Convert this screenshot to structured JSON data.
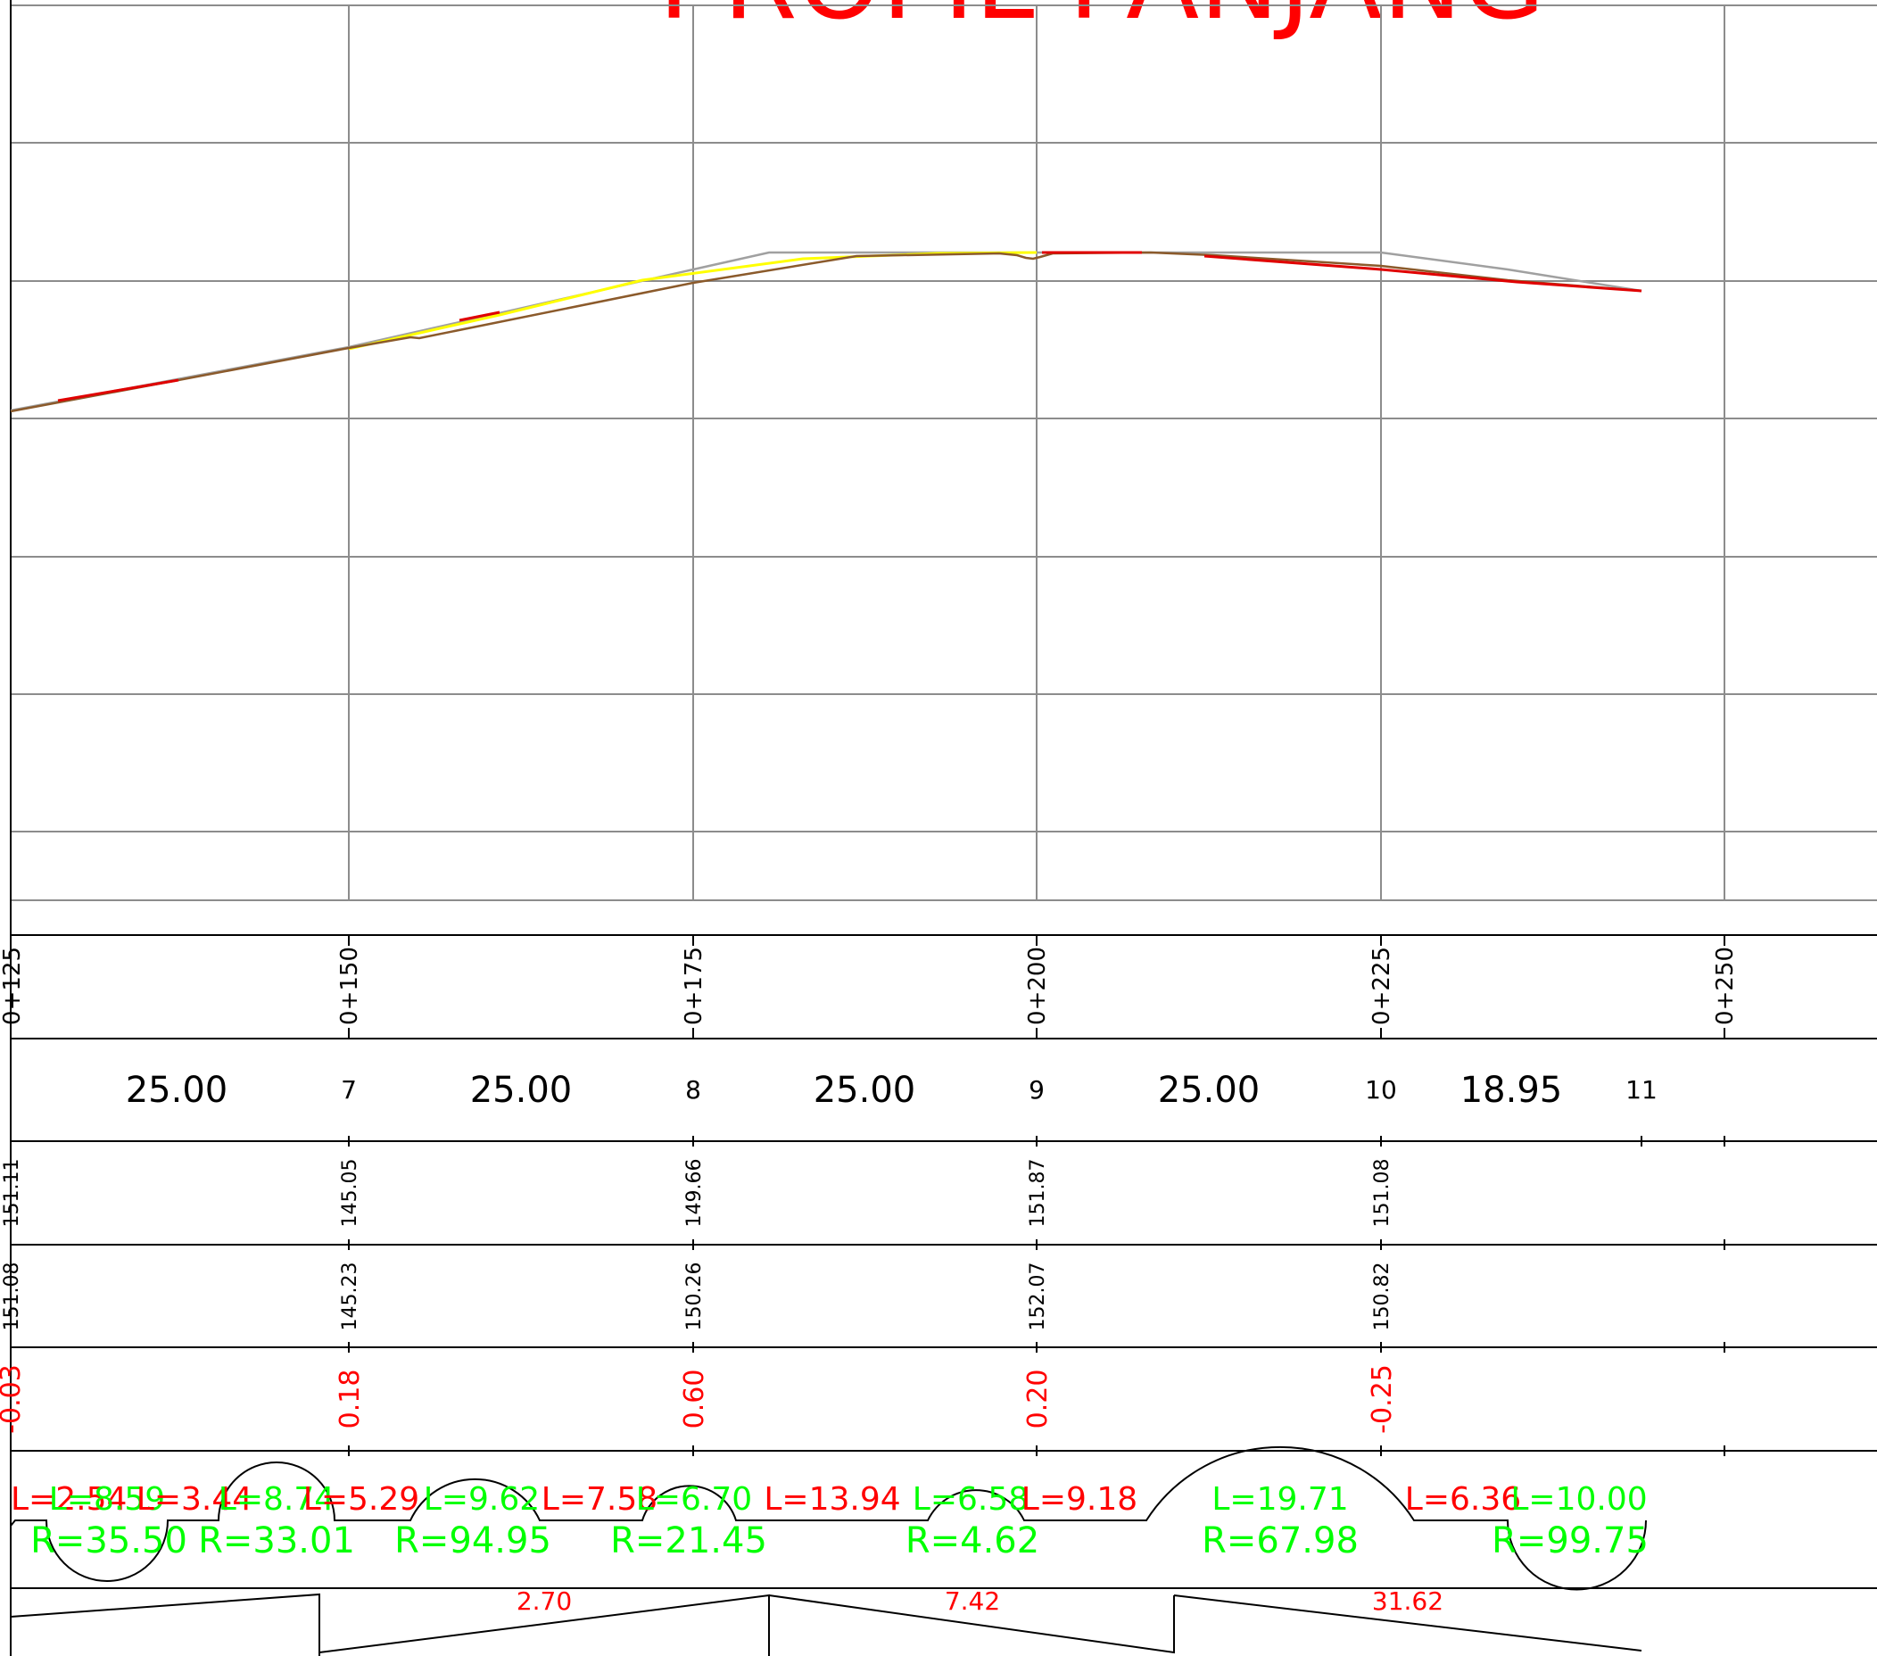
{
  "title": "PROFIL PANJANG",
  "stations": [
    "0+125",
    "0+150",
    "0+175",
    "0+200",
    "0+225",
    "0+250"
  ],
  "distances": [
    "25.00",
    "25.00",
    "25.00",
    "25.00",
    "18.95"
  ],
  "point_numbers": [
    "7",
    "8",
    "9",
    "10",
    "11"
  ],
  "ground_elevations": [
    "151.11",
    "145.05",
    "149.66",
    "151.87",
    "151.08"
  ],
  "design_elevations": [
    "151.08",
    "145.23",
    "150.26",
    "152.07",
    "150.82"
  ],
  "differences": [
    "-0.03",
    "0.18",
    "0.60",
    "0.20",
    "-0.25"
  ],
  "curves": {
    "lengths": [
      "L=2.54",
      "L=8.59",
      "L=3.44",
      "L=8.74",
      "L=5.29",
      "L=9.62",
      "L=7.58",
      "L=6.70",
      "L=13.94",
      "L=6.58",
      "L=9.18",
      "L=19.71",
      "L=6.36",
      "L=10.00"
    ],
    "radii": [
      "R=35.50",
      "R=33.01",
      "R=94.95",
      "R=21.45",
      "R=4.62",
      "R=67.98",
      "R=99.75"
    ]
  },
  "slopes": [
    "2.70",
    "7.42",
    "31.62"
  ],
  "colors": {
    "grid": "#8c8c8c",
    "frame": "#000000",
    "red_annotation": "#ff0000",
    "green_annotation": "#00ff00",
    "profile_existing": "#8b5a2b",
    "profile_yellow": "#ffff00",
    "profile_red": "#e00000",
    "profile_grey": "#a0a0a0"
  }
}
